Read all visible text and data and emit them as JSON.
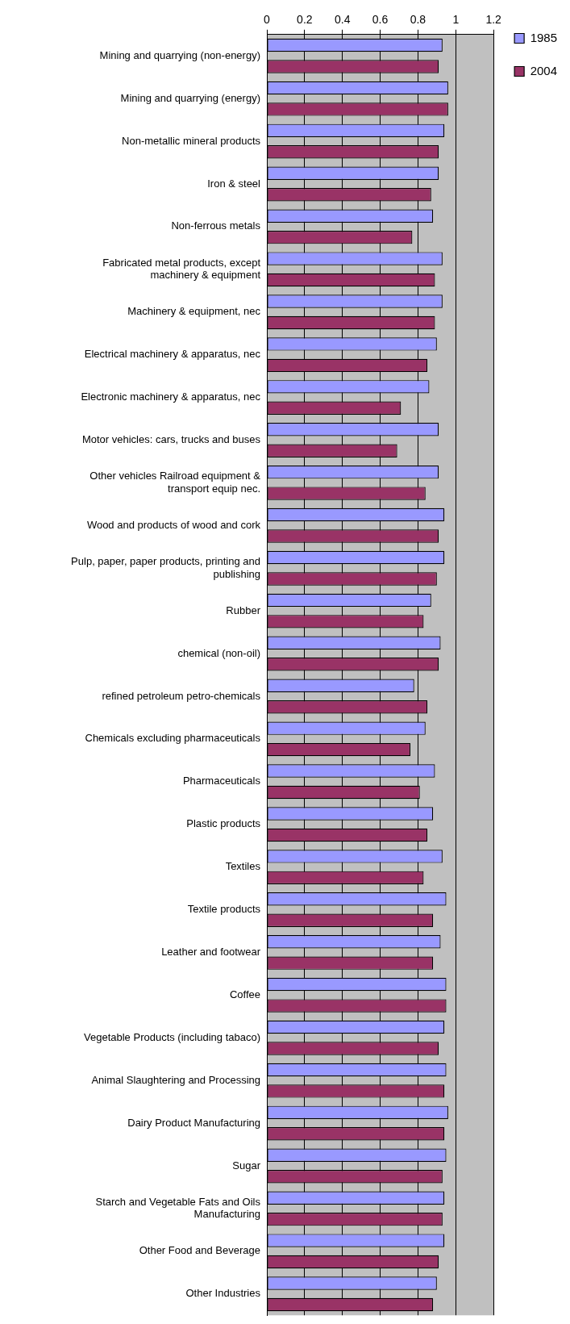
{
  "chart_data": {
    "type": "bar",
    "orientation": "horizontal",
    "categories": [
      "Mining and quarrying (non-energy)",
      "Mining and quarrying (energy)",
      "Non-metallic mineral products",
      "Iron & steel",
      "Non-ferrous metals",
      "Fabricated metal products, except machinery & equipment",
      "Machinery & equipment, nec",
      "Electrical machinery & apparatus, nec",
      "Electronic machinery & apparatus, nec",
      "Motor vehicles: cars, trucks and buses",
      "Other vehicles Railroad equipment & transport equip nec.",
      "Wood and products of wood and cork",
      "Pulp, paper, paper products, printing and publishing",
      "Rubber",
      "chemical (non-oil)",
      "refined petroleum petro-chemicals",
      "Chemicals excluding pharmaceuticals",
      "Pharmaceuticals",
      "Plastic products",
      "Textiles",
      "Textile products",
      "Leather and footwear",
      "Coffee",
      "Vegetable Products (including tabaco)",
      "Animal Slaughtering and Processing",
      "Dairy Product Manufacturing",
      "Sugar",
      "Starch and Vegetable Fats and Oils Manufacturing",
      "Other Food and Beverage",
      "Other Industries"
    ],
    "series": [
      {
        "name": "1985",
        "color": "#9999ff",
        "values": [
          0.93,
          0.96,
          0.94,
          0.91,
          0.88,
          0.93,
          0.93,
          0.9,
          0.86,
          0.91,
          0.91,
          0.94,
          0.94,
          0.87,
          0.92,
          0.78,
          0.84,
          0.89,
          0.88,
          0.93,
          0.95,
          0.92,
          0.95,
          0.94,
          0.95,
          0.96,
          0.95,
          0.94,
          0.94,
          0.9
        ]
      },
      {
        "name": "2004",
        "color": "#993366",
        "values": [
          0.91,
          0.96,
          0.91,
          0.87,
          0.77,
          0.89,
          0.89,
          0.85,
          0.71,
          0.69,
          0.84,
          0.91,
          0.9,
          0.83,
          0.91,
          0.85,
          0.76,
          0.81,
          0.85,
          0.83,
          0.88,
          0.88,
          0.95,
          0.91,
          0.94,
          0.94,
          0.93,
          0.93,
          0.91,
          0.88
        ]
      }
    ],
    "xlim": [
      0,
      1.2
    ],
    "xticks": [
      0,
      0.2,
      0.4,
      0.6,
      0.8,
      1,
      1.2
    ],
    "grid": "x",
    "legend": "right"
  }
}
